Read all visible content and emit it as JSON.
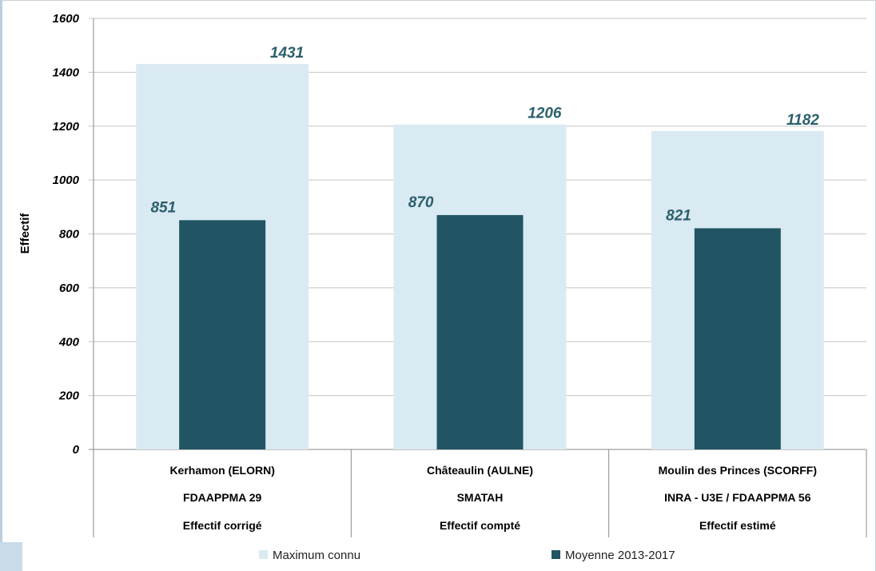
{
  "chart_data": {
    "type": "bar",
    "title": "",
    "xlabel": "",
    "ylabel": "Effectif",
    "ylim": [
      0,
      1600
    ],
    "yticks": [
      0,
      200,
      400,
      600,
      800,
      1000,
      1200,
      1400,
      1600
    ],
    "grid": true,
    "legend_position": "bottom",
    "categories": [
      {
        "lines": [
          "Kerhamon (ELORN)",
          "FDAAPPMA 29",
          "Effectif corrigé"
        ]
      },
      {
        "lines": [
          "Châteaulin (AULNE)",
          "SMATAH",
          "Effectif compté"
        ]
      },
      {
        "lines": [
          "Moulin des Princes (SCORFF)",
          "INRA - U3E / FDAAPPMA 56",
          "Effectif estimé"
        ]
      }
    ],
    "series": [
      {
        "name": "Maximum connu",
        "values": [
          1431,
          1206,
          1182
        ],
        "color": "#daeaf2"
      },
      {
        "name": "Moyenne 2013-2017",
        "values": [
          851,
          870,
          821
        ],
        "color": "#215563"
      }
    ]
  }
}
